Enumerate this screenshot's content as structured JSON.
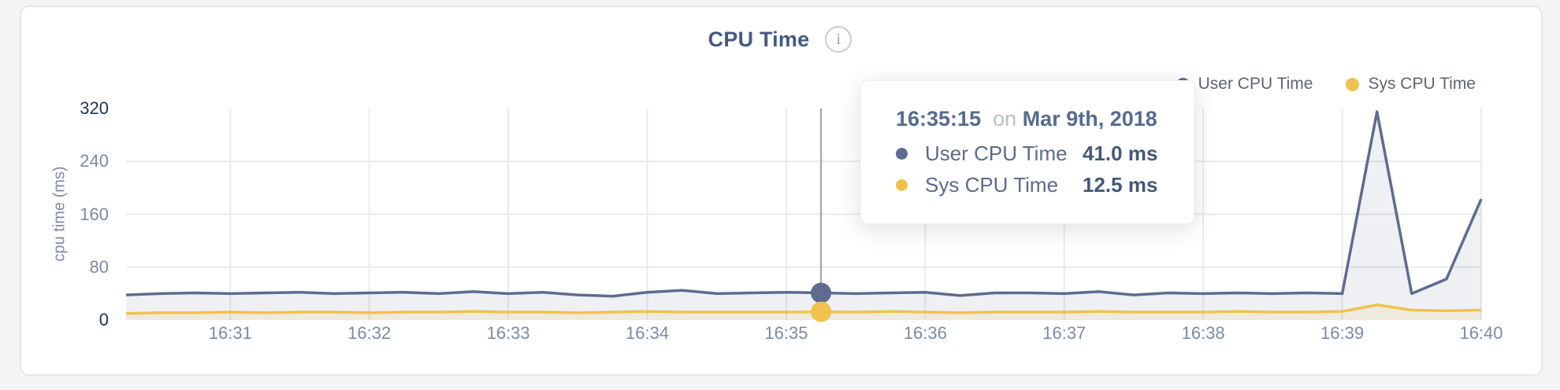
{
  "title": {
    "text": "CPU Time",
    "info_glyph": "i"
  },
  "legend": {
    "items": [
      {
        "label": "User CPU Time",
        "color": "#5d6c90"
      },
      {
        "label": "Sys CPU Time",
        "color": "#f0c24d"
      }
    ]
  },
  "tooltip": {
    "time": "16:35:15",
    "conjunction": "on",
    "date": "Mar 9th, 2018",
    "rows": [
      {
        "label": "User CPU Time",
        "value": "41.0 ms",
        "color": "#5d6c90"
      },
      {
        "label": "Sys CPU Time",
        "value": "12.5 ms",
        "color": "#f0c24d"
      }
    ]
  },
  "chart_data": {
    "type": "area",
    "title": "CPU Time",
    "xlabel": "",
    "ylabel": "cpu time (ms)",
    "ylim": [
      0,
      320
    ],
    "y_ticks": [
      0,
      80,
      160,
      240,
      320
    ],
    "grid": "on",
    "legend_position": "top-right",
    "x_start": "16:30:15",
    "x_step_seconds": 15,
    "x_ticks": [
      "16:31",
      "16:32",
      "16:33",
      "16:34",
      "16:35",
      "16:36",
      "16:37",
      "16:38",
      "16:39",
      "16:40"
    ],
    "series": [
      {
        "name": "User CPU Time",
        "color": "#5d6c90",
        "fill_opacity": 0.1,
        "values": [
          38,
          40,
          41,
          40,
          41,
          42,
          40,
          41,
          42,
          40,
          43,
          40,
          42,
          38,
          36,
          42,
          45,
          40,
          41,
          42,
          41,
          40,
          41,
          42,
          37,
          41,
          41,
          40,
          43,
          38,
          41,
          40,
          41,
          40,
          41,
          40,
          315,
          40,
          62,
          183
        ]
      },
      {
        "name": "Sys CPU Time",
        "color": "#f0c24d",
        "fill_opacity": 0.13,
        "values": [
          10,
          11,
          11,
          12,
          11,
          12,
          12,
          11,
          12,
          12,
          13,
          12,
          12,
          11,
          12,
          13,
          12,
          12,
          12,
          12,
          12.5,
          12,
          13,
          12,
          11,
          12,
          12,
          12,
          13,
          12,
          12,
          12,
          13,
          12,
          12,
          13,
          23,
          15,
          14,
          15
        ]
      }
    ],
    "hover": {
      "time": "16:35:15",
      "values": [
        41.0,
        12.5
      ]
    },
    "colors": {
      "gridline": "#e9eaec",
      "marker_line": "#a8acb4",
      "tick_light": "#7e8aa0",
      "tick_dark": "#1d3357"
    }
  }
}
